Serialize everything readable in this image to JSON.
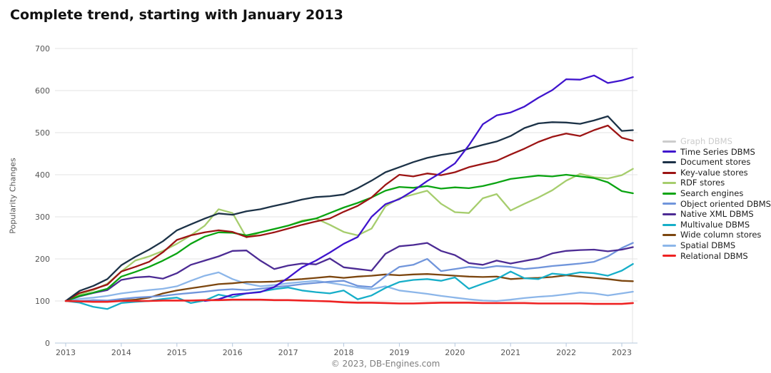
{
  "title": "Complete trend, starting with January 2013",
  "footer": "© 2023, DB-Engines.com",
  "colors": {
    "gridline": "#e3e3e3",
    "axis_line": "#b6c8de",
    "tick_label": "#555555",
    "title_text": "#111111",
    "footer_text": "#7d7d7d",
    "disabled_legend": "#cccccc"
  },
  "chart_data": {
    "type": "line",
    "title": "Complete trend, starting with January 2013",
    "xlabel": "",
    "ylabel": "Popularity Changes",
    "ylim": [
      0,
      700
    ],
    "xlim": [
      2013,
      2023.25
    ],
    "yticks": [
      0,
      100,
      200,
      300,
      400,
      500,
      600,
      700
    ],
    "xticks": [
      2013,
      2014,
      2015,
      2016,
      2017,
      2018,
      2019,
      2020,
      2021,
      2022,
      2023
    ],
    "grid": true,
    "legend_position": "right",
    "x": [
      2013.0,
      2013.25,
      2013.5,
      2013.75,
      2014.0,
      2014.25,
      2014.5,
      2014.75,
      2015.0,
      2015.25,
      2015.5,
      2015.75,
      2016.0,
      2016.25,
      2016.5,
      2016.75,
      2017.0,
      2017.25,
      2017.5,
      2017.75,
      2018.0,
      2018.25,
      2018.5,
      2018.75,
      2019.0,
      2019.25,
      2019.5,
      2019.75,
      2020.0,
      2020.25,
      2020.5,
      2020.75,
      2021.0,
      2021.25,
      2021.5,
      2021.75,
      2022.0,
      2022.25,
      2022.5,
      2022.75,
      2023.0,
      2023.2
    ],
    "series": [
      {
        "name": "Graph DBMS",
        "color": "#cccccc",
        "hidden": true,
        "values": null
      },
      {
        "name": "Time Series DBMS",
        "color": "#3f14cd",
        "hidden": false,
        "values": [
          null,
          null,
          null,
          null,
          null,
          null,
          null,
          null,
          null,
          null,
          100,
          104,
          115,
          118,
          121,
          133,
          155,
          180,
          196,
          215,
          236,
          252,
          300,
          330,
          342,
          362,
          385,
          405,
          427,
          470,
          520,
          541,
          548,
          562,
          583,
          601,
          627,
          626,
          636,
          618,
          624,
          632
        ]
      },
      {
        "name": "Document stores",
        "color": "#1c3247",
        "hidden": false,
        "values": [
          100,
          124,
          136,
          152,
          185,
          205,
          222,
          242,
          268,
          282,
          296,
          308,
          305,
          313,
          318,
          326,
          333,
          341,
          347,
          349,
          353,
          368,
          386,
          406,
          418,
          430,
          440,
          447,
          452,
          462,
          471,
          479,
          492,
          511,
          522,
          525,
          524,
          521,
          529,
          539,
          504,
          506
        ]
      },
      {
        "name": "Key-value stores",
        "color": "#9c1414",
        "hidden": false,
        "values": [
          100,
          119,
          128,
          139,
          170,
          181,
          193,
          216,
          245,
          256,
          263,
          268,
          264,
          252,
          256,
          263,
          272,
          281,
          289,
          296,
          312,
          326,
          346,
          376,
          400,
          396,
          403,
          399,
          406,
          418,
          426,
          433,
          448,
          462,
          478,
          490,
          498,
          492,
          506,
          517,
          488,
          481
        ]
      },
      {
        "name": "RDF stores",
        "color": "#a6cd6d",
        "hidden": false,
        "values": [
          100,
          116,
          126,
          141,
          170,
          196,
          206,
          219,
          236,
          256,
          279,
          318,
          309,
          251,
          263,
          271,
          279,
          291,
          296,
          281,
          264,
          256,
          272,
          325,
          344,
          353,
          362,
          331,
          311,
          309,
          344,
          354,
          315,
          331,
          346,
          363,
          386,
          402,
          394,
          391,
          399,
          414
        ]
      },
      {
        "name": "Search engines",
        "color": "#0aa412",
        "hidden": false,
        "values": [
          100,
          112,
          120,
          129,
          158,
          169,
          181,
          196,
          213,
          236,
          253,
          263,
          262,
          256,
          263,
          271,
          279,
          289,
          296,
          309,
          322,
          333,
          346,
          362,
          371,
          369,
          373,
          367,
          370,
          368,
          373,
          381,
          390,
          394,
          398,
          396,
          400,
          396,
          392,
          382,
          361,
          356
        ]
      },
      {
        "name": "Object oriented DBMS",
        "color": "#7095db",
        "hidden": false,
        "values": [
          100,
          100,
          102,
          101,
          105,
          108,
          110,
          112,
          116,
          119,
          122,
          126,
          128,
          126,
          129,
          133,
          136,
          140,
          143,
          146,
          148,
          136,
          133,
          159,
          181,
          186,
          200,
          171,
          176,
          181,
          178,
          183,
          181,
          176,
          179,
          183,
          186,
          189,
          193,
          206,
          226,
          238
        ]
      },
      {
        "name": "Native XML DBMS",
        "color": "#4c2b94",
        "hidden": false,
        "values": [
          100,
          111,
          119,
          126,
          150,
          156,
          158,
          153,
          166,
          186,
          196,
          206,
          219,
          220,
          196,
          176,
          184,
          189,
          187,
          201,
          180,
          176,
          172,
          212,
          230,
          233,
          238,
          219,
          209,
          190,
          186,
          196,
          189,
          195,
          201,
          213,
          219,
          221,
          222,
          218,
          222,
          228
        ]
      },
      {
        "name": "Multivalue DBMS",
        "color": "#16aec8",
        "hidden": false,
        "values": [
          100,
          96,
          86,
          81,
          95,
          98,
          100,
          105,
          108,
          95,
          101,
          115,
          109,
          118,
          122,
          128,
          132,
          125,
          121,
          118,
          125,
          104,
          113,
          131,
          145,
          150,
          152,
          148,
          156,
          129,
          141,
          152,
          170,
          154,
          152,
          165,
          162,
          168,
          166,
          160,
          172,
          188
        ]
      },
      {
        "name": "Wide column stores",
        "color": "#7c460f",
        "hidden": false,
        "values": [
          100,
          100,
          100,
          100,
          101,
          103,
          108,
          118,
          125,
          130,
          135,
          140,
          142,
          145,
          145,
          146,
          150,
          152,
          155,
          158,
          155,
          158,
          160,
          163,
          161,
          163,
          164,
          162,
          160,
          158,
          157,
          158,
          152,
          154,
          155,
          157,
          161,
          158,
          155,
          152,
          148,
          147
        ]
      },
      {
        "name": "Spatial DBMS",
        "color": "#8cb6e9",
        "hidden": false,
        "values": [
          100,
          105,
          108,
          112,
          118,
          122,
          126,
          129,
          135,
          148,
          160,
          168,
          152,
          141,
          135,
          138,
          142,
          145,
          148,
          143,
          138,
          132,
          128,
          135,
          125,
          121,
          117,
          112,
          108,
          104,
          101,
          100,
          103,
          107,
          110,
          112,
          116,
          120,
          118,
          113,
          118,
          122
        ]
      },
      {
        "name": "Relational DBMS",
        "color": "#ee2222",
        "hidden": false,
        "values": [
          100,
          99,
          98,
          98,
          100,
          100,
          100,
          101,
          101,
          101,
          102,
          102,
          103,
          103,
          103,
          102,
          102,
          101,
          100,
          99,
          97,
          96,
          96,
          95,
          94,
          94,
          95,
          96,
          96,
          96,
          95,
          95,
          95,
          95,
          94,
          94,
          94,
          94,
          93,
          93,
          93,
          95
        ]
      }
    ]
  }
}
